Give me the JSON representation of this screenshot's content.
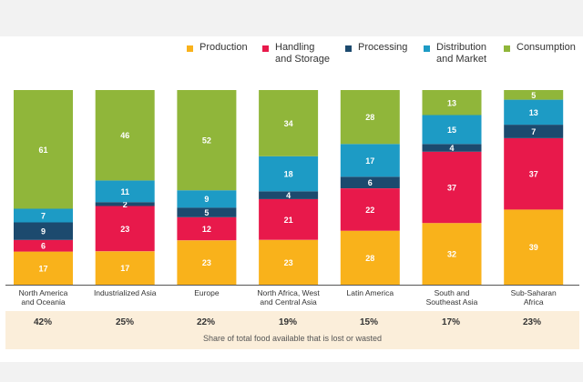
{
  "chart_data": {
    "type": "bar",
    "stacked": true,
    "title": "",
    "xlabel": "",
    "ylabel": "",
    "ylim": [
      0,
      100
    ],
    "categories": [
      "North America\nand Oceania",
      "Industrialized Asia",
      "Europe",
      "North Africa, West\nand Central Asia",
      "Latin America",
      "South and\nSoutheast Asia",
      "Sub-Saharan\nAfrica"
    ],
    "series": [
      {
        "name": "Production",
        "color": "#f9b21b",
        "values": [
          17,
          17,
          23,
          23,
          28,
          32,
          39
        ]
      },
      {
        "name": "Handling\nand Storage",
        "color": "#e8194b",
        "values": [
          6,
          23,
          12,
          21,
          22,
          37,
          37
        ]
      },
      {
        "name": "Processing",
        "color": "#1c4a6e",
        "values": [
          9,
          2,
          5,
          4,
          6,
          4,
          7
        ]
      },
      {
        "name": "Distribution\nand Market",
        "color": "#1d9bc5",
        "values": [
          7,
          11,
          9,
          18,
          17,
          15,
          13
        ]
      },
      {
        "name": "Consumption",
        "color": "#90b63a",
        "values": [
          61,
          46,
          52,
          34,
          28,
          13,
          5
        ]
      }
    ],
    "share_lost_or_wasted": [
      "42%",
      "25%",
      "22%",
      "19%",
      "15%",
      "17%",
      "23%"
    ],
    "footer_label": "Share of total food available that is lost or wasted"
  }
}
